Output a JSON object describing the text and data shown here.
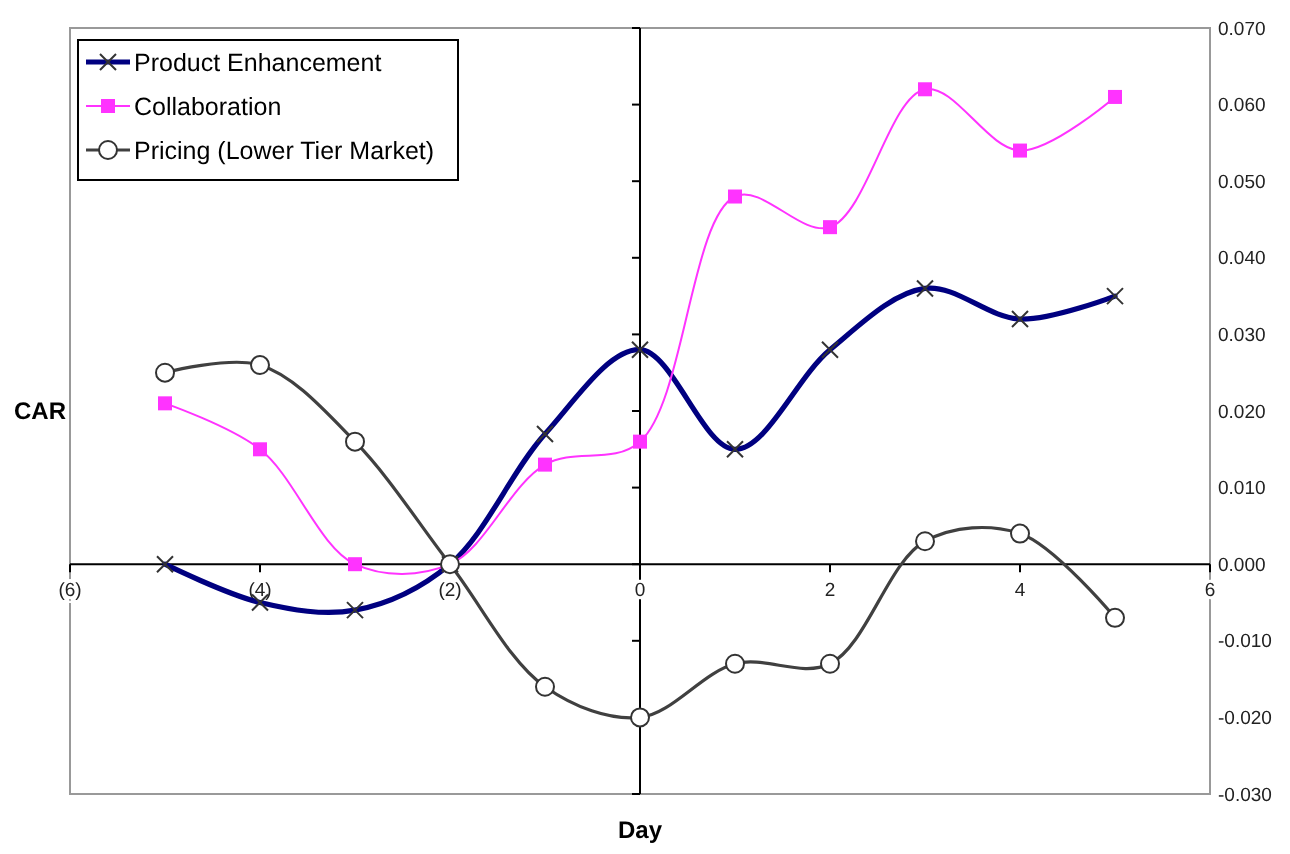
{
  "chart_data": {
    "type": "line",
    "xlabel": "Day",
    "ylabel": "CAR",
    "xlim": [
      -6,
      6
    ],
    "xticks": [
      {
        "value": -6,
        "label": "(6)"
      },
      {
        "value": -4,
        "label": "(4)"
      },
      {
        "value": -2,
        "label": "(2)"
      },
      0,
      2,
      4,
      6
    ],
    "ylim": [
      -0.03,
      0.07
    ],
    "yticks": [
      {
        "value": -0.03,
        "label": "-0.030"
      },
      {
        "value": -0.02,
        "label": "-0.020"
      },
      {
        "value": -0.01,
        "label": "-0.010"
      },
      {
        "value": 0,
        "label": "0.000"
      },
      {
        "value": 0.01,
        "label": "0.010"
      },
      {
        "value": 0.02,
        "label": "0.020"
      },
      {
        "value": 0.03,
        "label": "0.030"
      },
      {
        "value": 0.04,
        "label": "0.040"
      },
      {
        "value": 0.05,
        "label": "0.050"
      },
      {
        "value": 0.06,
        "label": "0.060"
      },
      {
        "value": 0.07,
        "label": "0.070"
      }
    ],
    "x": [
      -5,
      -4,
      -3,
      -2,
      -1,
      0,
      1,
      2,
      3,
      4,
      5
    ],
    "legend": "top left",
    "series": [
      {
        "name": "Product Enhancement",
        "color": "#000080",
        "marker": "cross",
        "values": [
          0.0,
          -0.005,
          -0.006,
          0.0,
          0.017,
          0.028,
          0.015,
          0.028,
          0.036,
          0.032,
          0.035
        ]
      },
      {
        "name": "Collaboration",
        "color": "#ff33ff",
        "marker": "square",
        "values": [
          0.021,
          0.015,
          0.0,
          0.0,
          0.013,
          0.016,
          0.048,
          0.044,
          0.062,
          0.054,
          0.061
        ]
      },
      {
        "name": "Pricing (Lower Tier Market)",
        "color": "#404040",
        "marker": "circle",
        "values": [
          0.025,
          0.026,
          0.016,
          0.0,
          -0.016,
          -0.02,
          -0.013,
          -0.013,
          0.003,
          0.004,
          -0.007
        ]
      }
    ]
  }
}
